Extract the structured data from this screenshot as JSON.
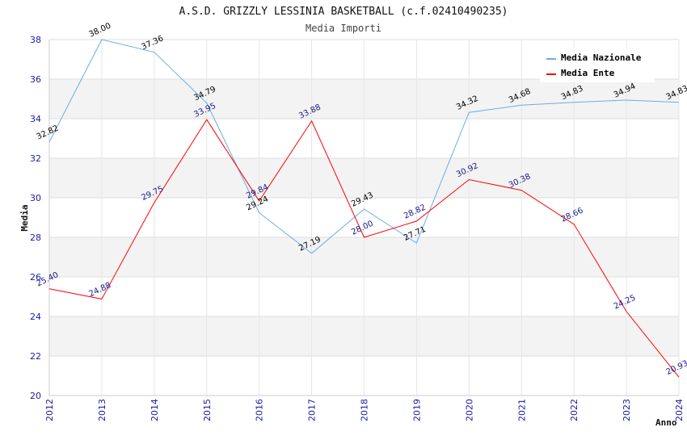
{
  "chart_data": {
    "type": "line",
    "title": "A.S.D. GRIZZLY LESSINIA BASKETBALL (c.f.02410490235)",
    "subtitle": "Media Importi",
    "xlabel": "Anno",
    "ylabel": "Media",
    "x": [
      "2012",
      "2013",
      "2014",
      "2015",
      "2016",
      "2017",
      "2018",
      "2019",
      "2020",
      "2021",
      "2022",
      "2023",
      "2024"
    ],
    "ylim": [
      20,
      38
    ],
    "yticks": [
      20,
      22,
      24,
      26,
      28,
      30,
      32,
      34,
      36,
      38
    ],
    "grid": true,
    "legend_position": "top-right",
    "series": [
      {
        "name": "Media Nazionale",
        "color": "#6aaee6",
        "label_color": "#000000",
        "values": [
          32.82,
          38.0,
          37.36,
          34.79,
          29.24,
          27.19,
          29.43,
          27.71,
          34.32,
          34.68,
          34.83,
          34.94,
          34.83
        ],
        "labels": [
          "32.82",
          "38.00",
          "37.36",
          "34.79",
          "29.24",
          "27.19",
          "29.43",
          "27.71",
          "34.32",
          "34.68",
          "34.83",
          "34.94",
          "34.83"
        ]
      },
      {
        "name": "Media Ente",
        "color": "#ff0000",
        "label_color": "#1a1a8c",
        "values": [
          25.4,
          24.88,
          29.75,
          33.95,
          29.84,
          33.88,
          28.0,
          28.82,
          30.92,
          30.38,
          28.66,
          24.25,
          20.93
        ],
        "labels": [
          "25.40",
          "24.88",
          "29.75",
          "33.95",
          "29.84",
          "33.88",
          "28.00",
          "28.82",
          "30.92",
          "30.38",
          "28.66",
          "24.25",
          "20.93"
        ]
      }
    ]
  }
}
